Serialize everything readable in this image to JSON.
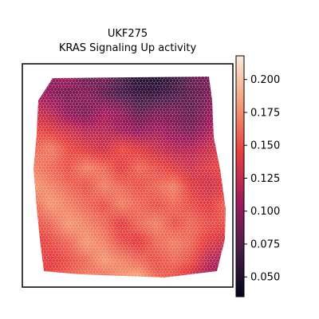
{
  "chart_data": {
    "type": "heatmap",
    "title_lines": [
      "UKF275",
      "KRAS Signaling Up activity"
    ],
    "xlabel": "",
    "ylabel": "",
    "colormap": "rocket",
    "colorbar": {
      "range": [
        0.035,
        0.218
      ],
      "ticks": [
        "0.050",
        "0.075",
        "0.100",
        "0.125",
        "0.150",
        "0.175",
        "0.200"
      ],
      "tick_values": [
        0.05,
        0.075,
        0.1,
        0.125,
        0.15,
        0.175,
        0.2
      ],
      "colors": [
        "#03051a",
        "#4c1d4b",
        "#a11a5b",
        "#e83f3f",
        "#f69c73",
        "#faebdd"
      ]
    },
    "description_of_field": "Spatial spot heatmap of activity; lowest values (~0.04-0.07) concentrated at top-center, mid values (~0.09-0.12) across upper third and scattered patches, highest values (~0.17-0.21) in lower-middle and bottom regions.",
    "value_field": {
      "grid_rows": 12,
      "grid_cols": 12,
      "values": [
        [
          0.09,
          0.1,
          0.11,
          0.08,
          0.09,
          0.07,
          0.05,
          0.05,
          0.06,
          0.08,
          0.09,
          0.1
        ],
        [
          0.11,
          0.1,
          0.09,
          0.1,
          0.08,
          0.07,
          0.06,
          0.06,
          0.07,
          0.08,
          0.09,
          0.11
        ],
        [
          0.13,
          0.12,
          0.1,
          0.09,
          0.11,
          0.1,
          0.08,
          0.09,
          0.09,
          0.08,
          0.1,
          0.12
        ],
        [
          0.15,
          0.14,
          0.13,
          0.12,
          0.12,
          0.11,
          0.1,
          0.11,
          0.1,
          0.09,
          0.11,
          0.13
        ],
        [
          0.16,
          0.17,
          0.15,
          0.14,
          0.13,
          0.15,
          0.14,
          0.13,
          0.12,
          0.12,
          0.13,
          0.14
        ],
        [
          0.17,
          0.16,
          0.15,
          0.17,
          0.16,
          0.14,
          0.16,
          0.15,
          0.14,
          0.13,
          0.14,
          0.15
        ],
        [
          0.18,
          0.17,
          0.16,
          0.15,
          0.17,
          0.16,
          0.15,
          0.16,
          0.17,
          0.14,
          0.13,
          0.14
        ],
        [
          0.16,
          0.18,
          0.17,
          0.16,
          0.15,
          0.17,
          0.16,
          0.15,
          0.16,
          0.15,
          0.14,
          0.16
        ],
        [
          0.15,
          0.16,
          0.18,
          0.17,
          0.16,
          0.14,
          0.16,
          0.17,
          0.15,
          0.16,
          0.15,
          0.15
        ],
        [
          0.14,
          0.15,
          0.16,
          0.18,
          0.17,
          0.15,
          0.14,
          0.16,
          0.17,
          0.16,
          0.14,
          0.13
        ],
        [
          0.15,
          0.14,
          0.15,
          0.16,
          0.18,
          0.17,
          0.16,
          0.15,
          0.16,
          0.15,
          0.12,
          0.11
        ],
        [
          0.13,
          0.15,
          0.16,
          0.17,
          0.16,
          0.18,
          0.19,
          0.16,
          0.15,
          0.13,
          0.11,
          0.1
        ]
      ]
    }
  }
}
